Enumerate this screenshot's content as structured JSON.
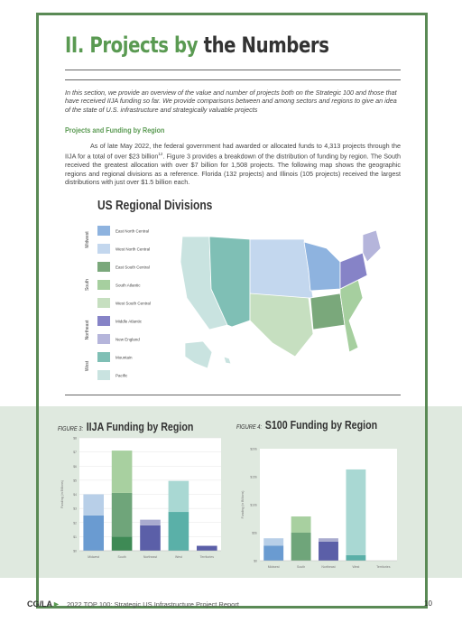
{
  "header": {
    "title_part1": "II. Projects by",
    "title_part2": "the Numbers"
  },
  "intro": "In this section, we provide an overview of the value and number of projects both on the Strategic 100 and those that have received IIJA funding so far. We provide comparisons between and among sectors and regions to give an idea of the state of U.S. infrastructure and strategically valuable projects",
  "section": {
    "heading": "Projects and Funding by Region",
    "text_before": "As of late May 2022, the federal government had awarded or allocated funds to 4,313 projects through the IIJA for a total of over $23 billion",
    "superscript": "12",
    "text_after": ". Figure 3 provides a breakdown of the distribution of funding by region.  The South received the greatest allocation with over $7 billion for 1,508 projects. The following map shows the geographic regions and regional divisions as a reference. Florida (132 projects) and Illinois (105 projects) received the largest distributions with just over $1.5 billion each."
  },
  "map": {
    "title": "US Regional Divisions",
    "groups": [
      {
        "name": "Midwest",
        "divisions": [
          {
            "label": "East North Central",
            "color": "#8eb3df"
          },
          {
            "label": "West North Central",
            "color": "#c3d7ee"
          }
        ]
      },
      {
        "name": "South",
        "divisions": [
          {
            "label": "East South Central",
            "color": "#7aa87b"
          },
          {
            "label": "South Atlantic",
            "color": "#a6cf9f"
          },
          {
            "label": "West South Central",
            "color": "#c6dfc0"
          }
        ]
      },
      {
        "name": "Northeast",
        "divisions": [
          {
            "label": "Middle Atlantic",
            "color": "#8683c7"
          },
          {
            "label": "New England",
            "color": "#b5b5db"
          }
        ]
      },
      {
        "name": "West",
        "divisions": [
          {
            "label": "Mountain",
            "color": "#7fbfb5"
          },
          {
            "label": "Pacific",
            "color": "#c9e3e0"
          }
        ]
      }
    ]
  },
  "chart_data": [
    {
      "type": "bar",
      "figure_label": "FIGURE 3:",
      "title": "IIJA Funding by Region",
      "y_label": "Funding (in Billions)",
      "categories": [
        "Midwest",
        "South",
        "Northeast",
        "West",
        "Territories"
      ],
      "series": [
        {
          "colors": [
            "#6a9bd1",
            "#3e8a55",
            "#5b5fa8",
            "#5ab0a8",
            "#5b5fa8"
          ],
          "values": [
            2.5,
            1.0,
            1.8,
            2.75,
            0.35
          ]
        },
        {
          "colors": [
            "#b8cfe8",
            "#6fa57a",
            "#a9abcf",
            "#a9d8d3",
            "#5b5fa8"
          ],
          "values": [
            1.5,
            3.1,
            0.4,
            2.2,
            null
          ]
        },
        {
          "colors": [
            "#b8cfe8",
            "#a8d0a0",
            "#a9abcf",
            "#a9d8d3",
            "#5b5fa8"
          ],
          "values": [
            null,
            3.0,
            null,
            null,
            null
          ]
        }
      ],
      "ylim": [
        0,
        8
      ],
      "yticks": [
        {
          "value": 0,
          "label": "$0"
        },
        {
          "value": 1,
          "label": "$1"
        },
        {
          "value": 2,
          "label": "$2"
        },
        {
          "value": 3,
          "label": "$3"
        },
        {
          "value": 4,
          "label": "$4"
        },
        {
          "value": 5,
          "label": "$5"
        },
        {
          "value": 6,
          "label": "$6"
        },
        {
          "value": 7,
          "label": "$7"
        },
        {
          "value": 8,
          "label": "$8"
        }
      ],
      "grid": true
    },
    {
      "type": "bar",
      "figure_label": "FIGURE 4:",
      "title": "S100 Funding by Region",
      "y_label": "Funding (in Billions)",
      "categories": [
        "Midwest",
        "South",
        "Northeast",
        "West",
        "Territories"
      ],
      "series": [
        {
          "colors": [
            "#6a9bd1",
            "#6fa57a",
            "#5b5fa8",
            "#5ab0a8",
            "#5b5fa8"
          ],
          "values": [
            2.7,
            5.0,
            3.4,
            1.0,
            null
          ]
        },
        {
          "colors": [
            "#b8cfe8",
            "#a8d0a0",
            "#a9abcf",
            "#a9d8d3",
            "#5b5fa8"
          ],
          "values": [
            1.3,
            2.9,
            0.6,
            15.3,
            null
          ]
        }
      ],
      "ylim": [
        0,
        20
      ],
      "yticks": [
        {
          "value": 0,
          "label": "$0"
        },
        {
          "value": 5,
          "label": "$5b"
        },
        {
          "value": 10,
          "label": "$10b"
        },
        {
          "value": 15,
          "label": "$15b"
        },
        {
          "value": 20,
          "label": "$20b"
        }
      ],
      "grid": false
    }
  ],
  "footer": {
    "brand": "CG/LA",
    "report": "2022 TOP 100: Strategic US Infrastructure Project Report",
    "page": "10"
  }
}
